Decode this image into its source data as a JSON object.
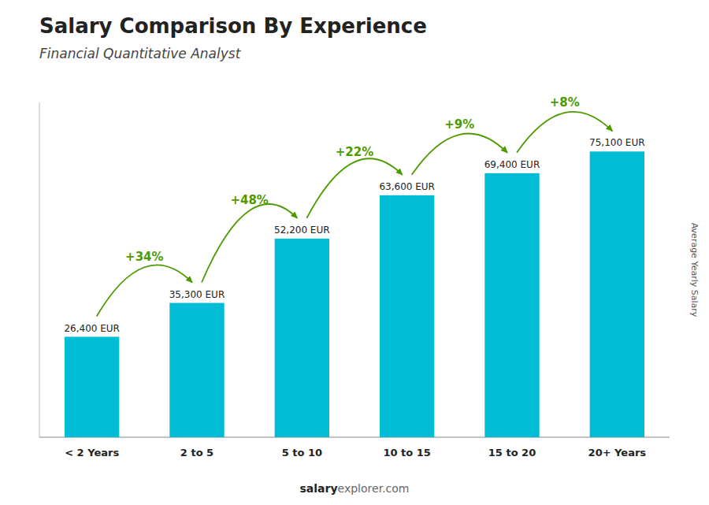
{
  "chart_data": {
    "type": "bar",
    "title": "Salary Comparison By Experience",
    "subtitle": "Financial Quantitative Analyst",
    "categories": [
      "< 2 Years",
      "2 to 5",
      "5 to 10",
      "10 to 15",
      "15 to 20",
      "20+ Years"
    ],
    "values": [
      26400,
      35300,
      52200,
      63600,
      69400,
      75100
    ],
    "value_labels": [
      "26,400 EUR",
      "35,300 EUR",
      "52,200 EUR",
      "63,600 EUR",
      "69,400 EUR",
      "75,100 EUR"
    ],
    "data_labels": true,
    "annotations": [
      "+34%",
      "+48%",
      "+22%",
      "+9%",
      "+8%"
    ],
    "y_label": "Average Yearly Salary",
    "footer": [
      "salary",
      "explorer.com"
    ],
    "color": "#00bcd4",
    "ylim": [
      0,
      88000
    ],
    "tick_labels": "x"
  }
}
